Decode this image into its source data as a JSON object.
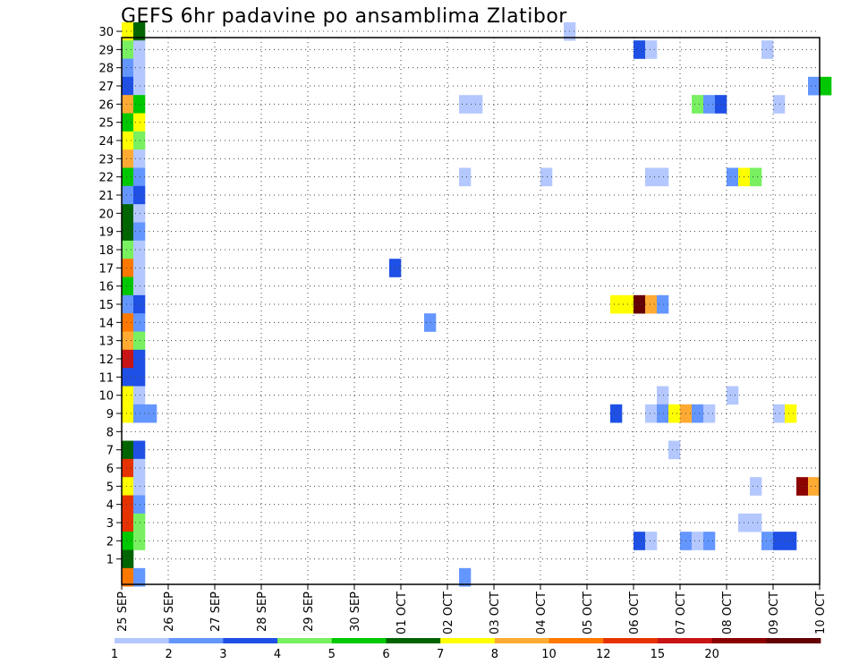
{
  "chart_data": {
    "type": "heatmap",
    "title": "GEFS 6hr padavine po ansamblima Zlatibor",
    "xlabel": "",
    "ylabel": "",
    "x_tick_labels": [
      "25 SEP",
      "26 SEP",
      "27 SEP",
      "28 SEP",
      "29 SEP",
      "30 SEP",
      "01 OCT",
      "02 OCT",
      "03 OCT",
      "04 OCT",
      "05 OCT",
      "06 OCT",
      "07 OCT",
      "08 OCT",
      "09 OCT",
      "10 OCT"
    ],
    "y_tick_labels": [
      "1",
      "2",
      "3",
      "4",
      "5",
      "6",
      "7",
      "8",
      "9",
      "10",
      "11",
      "12",
      "13",
      "14",
      "15",
      "16",
      "17",
      "18",
      "19",
      "20",
      "21",
      "22",
      "23",
      "24",
      "25",
      "26",
      "27",
      "28",
      "29",
      "30"
    ],
    "x_unit": "6-hour step index from 25 SEP 00Z",
    "x_range": [
      0,
      60
    ],
    "y_range": [
      0,
      30
    ],
    "grid": true,
    "colorbar": {
      "levels": [
        "1",
        "2",
        "3",
        "4",
        "5",
        "6",
        "7",
        "8",
        "10",
        "12",
        "15",
        "20"
      ],
      "colors": [
        "#b4c8ff",
        "#6496ff",
        "#1e50e6",
        "#78f060",
        "#00c800",
        "#006400",
        "#ffff00",
        "#ffaa32",
        "#ff7800",
        "#e63200",
        "#c81414",
        "#8c0000",
        "#640000"
      ]
    },
    "cell_legend": {
      "a": "1-2",
      "b": "2-3",
      "c": "3-4",
      "d": "4-5",
      "e": "5-6",
      "f": "6-7",
      "g": "7-8",
      "h": "8-10",
      "i": "10-12",
      "j": "12-15",
      "k": "15-20",
      "l": ">20",
      "m": ">20 (dark)"
    },
    "cells": [
      {
        "member": 30,
        "step": 0,
        "cls": "g"
      },
      {
        "member": 30,
        "step": 1,
        "cls": "f"
      },
      {
        "member": 30,
        "step": 38,
        "cls": "a"
      },
      {
        "member": 29,
        "step": 0,
        "cls": "d"
      },
      {
        "member": 29,
        "step": 1,
        "cls": "a"
      },
      {
        "member": 29,
        "step": 44,
        "cls": "c"
      },
      {
        "member": 29,
        "step": 45,
        "cls": "a"
      },
      {
        "member": 29,
        "step": 55,
        "cls": "a"
      },
      {
        "member": 28,
        "step": 0,
        "cls": "b"
      },
      {
        "member": 28,
        "step": 1,
        "cls": "a"
      },
      {
        "member": 27,
        "step": 0,
        "cls": "c"
      },
      {
        "member": 27,
        "step": 1,
        "cls": "a"
      },
      {
        "member": 27,
        "step": 59,
        "cls": "b"
      },
      {
        "member": 27,
        "step": 60,
        "cls": "e"
      },
      {
        "member": 26,
        "step": 0,
        "cls": "h"
      },
      {
        "member": 26,
        "step": 1,
        "cls": "e"
      },
      {
        "member": 26,
        "step": 29,
        "cls": "a"
      },
      {
        "member": 26,
        "step": 30,
        "cls": "a"
      },
      {
        "member": 26,
        "step": 49,
        "cls": "d"
      },
      {
        "member": 26,
        "step": 50,
        "cls": "b"
      },
      {
        "member": 26,
        "step": 51,
        "cls": "c"
      },
      {
        "member": 26,
        "step": 56,
        "cls": "a"
      },
      {
        "member": 25,
        "step": 0,
        "cls": "e"
      },
      {
        "member": 25,
        "step": 1,
        "cls": "g"
      },
      {
        "member": 24,
        "step": 0,
        "cls": "g"
      },
      {
        "member": 24,
        "step": 1,
        "cls": "d"
      },
      {
        "member": 23,
        "step": 0,
        "cls": "h"
      },
      {
        "member": 23,
        "step": 1,
        "cls": "a"
      },
      {
        "member": 22,
        "step": 0,
        "cls": "e"
      },
      {
        "member": 22,
        "step": 1,
        "cls": "b"
      },
      {
        "member": 22,
        "step": 29,
        "cls": "a"
      },
      {
        "member": 22,
        "step": 36,
        "cls": "a"
      },
      {
        "member": 22,
        "step": 45,
        "cls": "a"
      },
      {
        "member": 22,
        "step": 46,
        "cls": "a"
      },
      {
        "member": 22,
        "step": 52,
        "cls": "b"
      },
      {
        "member": 22,
        "step": 53,
        "cls": "g"
      },
      {
        "member": 22,
        "step": 54,
        "cls": "d"
      },
      {
        "member": 21,
        "step": 0,
        "cls": "b"
      },
      {
        "member": 21,
        "step": 1,
        "cls": "c"
      },
      {
        "member": 20,
        "step": 0,
        "cls": "f"
      },
      {
        "member": 20,
        "step": 1,
        "cls": "a"
      },
      {
        "member": 19,
        "step": 0,
        "cls": "f"
      },
      {
        "member": 19,
        "step": 1,
        "cls": "b"
      },
      {
        "member": 18,
        "step": 0,
        "cls": "d"
      },
      {
        "member": 18,
        "step": 1,
        "cls": "a"
      },
      {
        "member": 17,
        "step": 0,
        "cls": "i"
      },
      {
        "member": 17,
        "step": 1,
        "cls": "a"
      },
      {
        "member": 17,
        "step": 23,
        "cls": "c"
      },
      {
        "member": 16,
        "step": 0,
        "cls": "e"
      },
      {
        "member": 16,
        "step": 1,
        "cls": "a"
      },
      {
        "member": 15,
        "step": 0,
        "cls": "b"
      },
      {
        "member": 15,
        "step": 1,
        "cls": "c"
      },
      {
        "member": 15,
        "step": 42,
        "cls": "g"
      },
      {
        "member": 15,
        "step": 43,
        "cls": "g"
      },
      {
        "member": 15,
        "step": 44,
        "cls": "m"
      },
      {
        "member": 15,
        "step": 45,
        "cls": "h"
      },
      {
        "member": 15,
        "step": 46,
        "cls": "b"
      },
      {
        "member": 14,
        "step": 0,
        "cls": "i"
      },
      {
        "member": 14,
        "step": 1,
        "cls": "b"
      },
      {
        "member": 14,
        "step": 26,
        "cls": "b"
      },
      {
        "member": 13,
        "step": 0,
        "cls": "h"
      },
      {
        "member": 13,
        "step": 1,
        "cls": "d"
      },
      {
        "member": 12,
        "step": 0,
        "cls": "k"
      },
      {
        "member": 12,
        "step": 1,
        "cls": "c"
      },
      {
        "member": 11,
        "step": 0,
        "cls": "c"
      },
      {
        "member": 11,
        "step": 1,
        "cls": "c"
      },
      {
        "member": 10,
        "step": 0,
        "cls": "g"
      },
      {
        "member": 10,
        "step": 1,
        "cls": "a"
      },
      {
        "member": 10,
        "step": 46,
        "cls": "a"
      },
      {
        "member": 10,
        "step": 52,
        "cls": "a"
      },
      {
        "member": 9,
        "step": 0,
        "cls": "g"
      },
      {
        "member": 9,
        "step": 1,
        "cls": "b"
      },
      {
        "member": 9,
        "step": 2,
        "cls": "b"
      },
      {
        "member": 9,
        "step": 42,
        "cls": "c"
      },
      {
        "member": 9,
        "step": 45,
        "cls": "a"
      },
      {
        "member": 9,
        "step": 46,
        "cls": "b"
      },
      {
        "member": 9,
        "step": 47,
        "cls": "g"
      },
      {
        "member": 9,
        "step": 48,
        "cls": "h"
      },
      {
        "member": 9,
        "step": 49,
        "cls": "b"
      },
      {
        "member": 9,
        "step": 50,
        "cls": "a"
      },
      {
        "member": 9,
        "step": 56,
        "cls": "a"
      },
      {
        "member": 9,
        "step": 57,
        "cls": "g"
      },
      {
        "member": 7,
        "step": 0,
        "cls": "f"
      },
      {
        "member": 7,
        "step": 1,
        "cls": "c"
      },
      {
        "member": 7,
        "step": 47,
        "cls": "a"
      },
      {
        "member": 6,
        "step": 0,
        "cls": "j"
      },
      {
        "member": 6,
        "step": 1,
        "cls": "a"
      },
      {
        "member": 5,
        "step": 0,
        "cls": "g"
      },
      {
        "member": 5,
        "step": 1,
        "cls": "a"
      },
      {
        "member": 5,
        "step": 54,
        "cls": "a"
      },
      {
        "member": 5,
        "step": 58,
        "cls": "l"
      },
      {
        "member": 5,
        "step": 59,
        "cls": "h"
      },
      {
        "member": 4,
        "step": 0,
        "cls": "j"
      },
      {
        "member": 4,
        "step": 1,
        "cls": "b"
      },
      {
        "member": 3,
        "step": 0,
        "cls": "j"
      },
      {
        "member": 3,
        "step": 1,
        "cls": "d"
      },
      {
        "member": 3,
        "step": 53,
        "cls": "a"
      },
      {
        "member": 3,
        "step": 54,
        "cls": "a"
      },
      {
        "member": 2,
        "step": 0,
        "cls": "e"
      },
      {
        "member": 2,
        "step": 1,
        "cls": "d"
      },
      {
        "member": 2,
        "step": 44,
        "cls": "c"
      },
      {
        "member": 2,
        "step": 45,
        "cls": "a"
      },
      {
        "member": 2,
        "step": 48,
        "cls": "b"
      },
      {
        "member": 2,
        "step": 49,
        "cls": "a"
      },
      {
        "member": 2,
        "step": 50,
        "cls": "b"
      },
      {
        "member": 2,
        "step": 55,
        "cls": "b"
      },
      {
        "member": 2,
        "step": 56,
        "cls": "c"
      },
      {
        "member": 2,
        "step": 57,
        "cls": "c"
      },
      {
        "member": 1,
        "step": 0,
        "cls": "f"
      },
      {
        "member": 0,
        "step": 0,
        "cls": "i"
      },
      {
        "member": 0,
        "step": 1,
        "cls": "b"
      },
      {
        "member": 0,
        "step": 29,
        "cls": "b"
      }
    ]
  }
}
